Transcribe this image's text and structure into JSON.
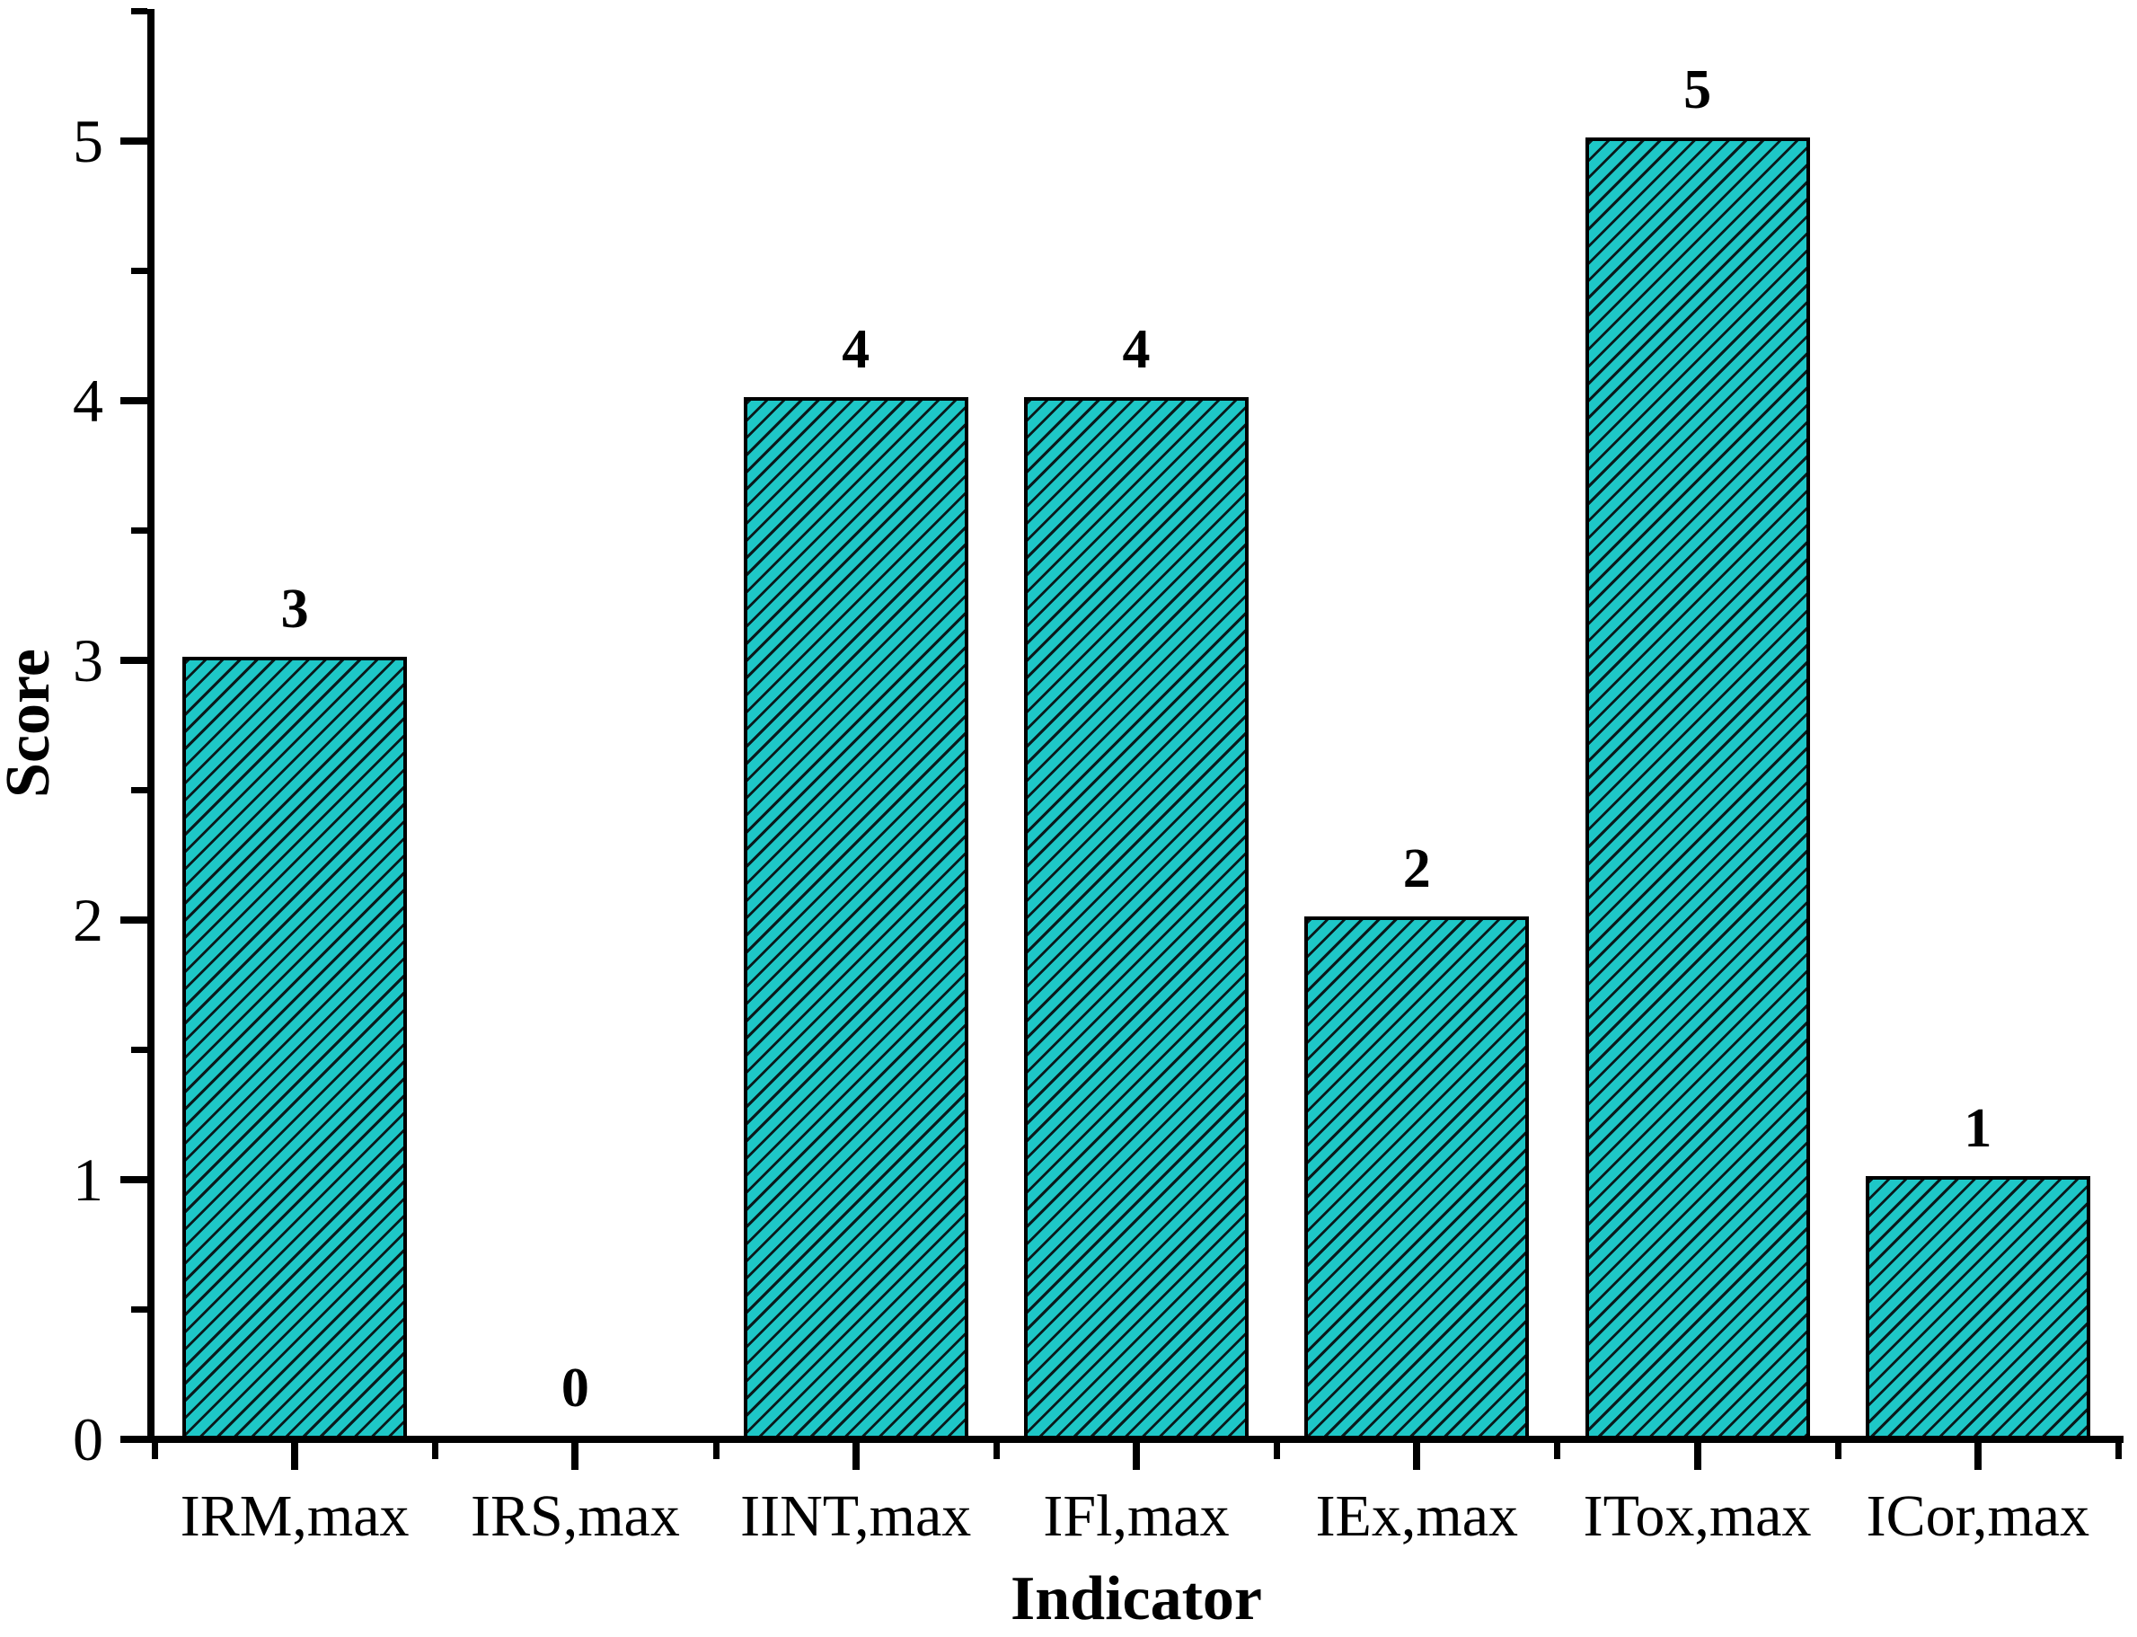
{
  "chart_data": {
    "type": "bar",
    "title": "",
    "xlabel": "Indicator",
    "ylabel": "Score",
    "categories": [
      "IRM,max",
      "IRS,max",
      "IINT,max",
      "IFl,max",
      "IEx,max",
      "ITox,max",
      "ICor,max"
    ],
    "values": [
      3,
      0,
      4,
      4,
      2,
      5,
      1
    ],
    "bar_labels": [
      "3",
      "0",
      "4",
      "4",
      "2",
      "5",
      "1"
    ],
    "ylim": [
      0,
      5.5
    ],
    "yticks": [
      0,
      1,
      2,
      3,
      4,
      5
    ],
    "ytick_labels": [
      "0",
      "1",
      "2",
      "3",
      "4",
      "5"
    ],
    "y_minor_step": 0.5,
    "grid": "off",
    "legend": "none",
    "bar_color": "#1ec7c7",
    "hatch_style": "forward-diagonal",
    "hatch_color": "#0a1a1c",
    "axis_color": "#000000",
    "label_color": "#000000"
  }
}
